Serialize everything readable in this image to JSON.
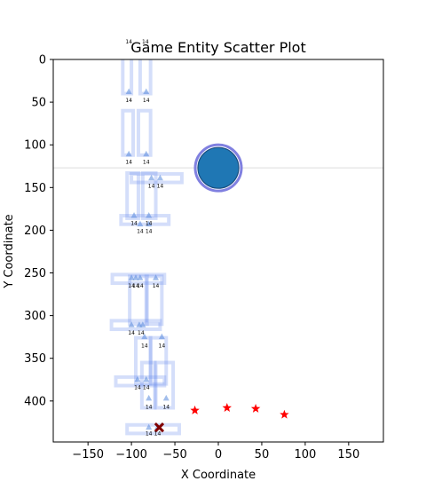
{
  "chart_data": {
    "type": "scatter",
    "title": "Game Entity Scatter Plot",
    "xlabel": "X Coordinate",
    "ylabel": "Y Coordinate",
    "xlim": [
      -190,
      190
    ],
    "ylim": [
      448,
      0
    ],
    "y_inverted": true,
    "grid": false,
    "x_ticks": [
      -150,
      -100,
      -50,
      0,
      50,
      100,
      150
    ],
    "y_ticks": [
      0,
      50,
      100,
      150,
      200,
      250,
      300,
      350,
      400
    ],
    "hline": {
      "y": 127,
      "color": "#dddddd"
    },
    "player": {
      "x": 0,
      "y": 127,
      "color": "#1f77b4",
      "edge_color": "#8080e0"
    },
    "stars": {
      "color": "#ff0000",
      "points": [
        [
          -27,
          411
        ],
        [
          10,
          408
        ],
        [
          43,
          409
        ],
        [
          76,
          416
        ]
      ]
    },
    "cross": {
      "x": -68,
      "y": 431,
      "color": "#800000"
    },
    "walls_color": "#6688ee",
    "walls": [
      [
        -110,
        -5,
        -100,
        40
      ],
      [
        -90,
        -5,
        -78,
        40
      ],
      [
        -110,
        60,
        -98,
        112
      ],
      [
        -92,
        60,
        -78,
        112
      ],
      [
        -105,
        133,
        -92,
        186
      ],
      [
        -87,
        133,
        -72,
        186
      ],
      [
        -100,
        134,
        -42,
        144
      ],
      [
        -112,
        183,
        -57,
        193
      ],
      [
        -102,
        254,
        -82,
        310
      ],
      [
        -83,
        254,
        -65,
        310
      ],
      [
        -122,
        252,
        -62,
        262
      ],
      [
        -123,
        306,
        -67,
        316
      ],
      [
        -95,
        326,
        -78,
        380
      ],
      [
        -78,
        326,
        -60,
        380
      ],
      [
        -88,
        355,
        -73,
        408
      ],
      [
        -72,
        355,
        -52,
        408
      ],
      [
        -118,
        372,
        -62,
        382
      ],
      [
        -105,
        428,
        -45,
        438
      ]
    ],
    "tri_color": "#5588dd",
    "triangles": [
      [
        -103,
        38
      ],
      [
        -83,
        38
      ],
      [
        -103,
        111
      ],
      [
        -83,
        111
      ],
      [
        -77,
        139
      ],
      [
        -67,
        139
      ],
      [
        -97,
        183
      ],
      [
        -90,
        193
      ],
      [
        -80,
        183
      ],
      [
        -80,
        193
      ],
      [
        -100,
        256
      ],
      [
        -95,
        256
      ],
      [
        -90,
        256
      ],
      [
        -72,
        256
      ],
      [
        -100,
        311
      ],
      [
        -91,
        311
      ],
      [
        -87,
        311
      ],
      [
        -85,
        325
      ],
      [
        -65,
        325
      ],
      [
        -93,
        375
      ],
      [
        -83,
        375
      ],
      [
        -80,
        397
      ],
      [
        -60,
        397
      ],
      [
        -80,
        431
      ],
      [
        -70,
        431
      ]
    ],
    "annotations": [
      {
        "text": "14",
        "x": -103,
        "y": -21
      },
      {
        "text": "14",
        "x": -84,
        "y": -21
      },
      {
        "text": "14",
        "x": -103,
        "y": 48
      },
      {
        "text": "14",
        "x": -83,
        "y": 48
      },
      {
        "text": "14",
        "x": -103,
        "y": 120
      },
      {
        "text": "14",
        "x": -83,
        "y": 120
      },
      {
        "text": "14",
        "x": -77,
        "y": 148
      },
      {
        "text": "14",
        "x": -67,
        "y": 148
      },
      {
        "text": "14",
        "x": -97,
        "y": 192
      },
      {
        "text": "14",
        "x": -80,
        "y": 192
      },
      {
        "text": "14",
        "x": -90,
        "y": 201
      },
      {
        "text": "14",
        "x": -80,
        "y": 201
      },
      {
        "text": "14",
        "x": -100,
        "y": 265
      },
      {
        "text": "14",
        "x": -95,
        "y": 265
      },
      {
        "text": "14",
        "x": -90,
        "y": 265
      },
      {
        "text": "14",
        "x": -72,
        "y": 265
      },
      {
        "text": "14",
        "x": -100,
        "y": 320
      },
      {
        "text": "14",
        "x": -89,
        "y": 320
      },
      {
        "text": "14",
        "x": -85,
        "y": 335
      },
      {
        "text": "14",
        "x": -65,
        "y": 335
      },
      {
        "text": "14",
        "x": -93,
        "y": 384
      },
      {
        "text": "14",
        "x": -83,
        "y": 384
      },
      {
        "text": "14",
        "x": -80,
        "y": 407
      },
      {
        "text": "14",
        "x": -60,
        "y": 407
      },
      {
        "text": "14",
        "x": -80,
        "y": 438
      },
      {
        "text": "14",
        "x": -70,
        "y": 438
      }
    ]
  }
}
